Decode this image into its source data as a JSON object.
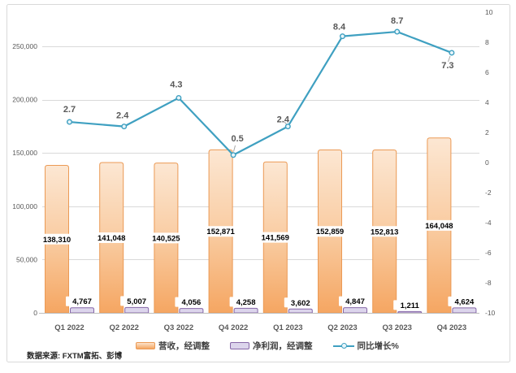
{
  "source": "数据来源: FXTM富拓、彭博",
  "chart_data": {
    "type": "combo",
    "categories": [
      "Q1 2022",
      "Q2 2022",
      "Q3 2022",
      "Q4 2022",
      "Q1 2023",
      "Q2 2023",
      "Q3 2023",
      "Q4 2023"
    ],
    "series": [
      {
        "name": "营收，经调整",
        "type": "bar",
        "axis": "left",
        "values": [
          138310,
          141048,
          140525,
          152871,
          141569,
          152859,
          152813,
          164048
        ],
        "labels": [
          "138,310",
          "141,048",
          "140,525",
          "152,871",
          "141,569",
          "152,859",
          "152,813",
          "164,048"
        ],
        "fill_top": "#FCE7D3",
        "fill_mid": "#F9CBA0",
        "fill_bottom": "#F5A662",
        "border": "#EB9A55"
      },
      {
        "name": "净利润，经调整",
        "type": "bar",
        "axis": "left",
        "values": [
          4767,
          5007,
          4056,
          4258,
          3602,
          4847,
          1211,
          4624
        ],
        "labels": [
          "4,767",
          "5,007",
          "4,056",
          "4,258",
          "3,602",
          "4,847",
          "1,211",
          "4,624"
        ],
        "fill": "#DCD5EC",
        "border": "#8667A8"
      },
      {
        "name": "同比增长%",
        "type": "line",
        "axis": "right",
        "values": [
          2.7,
          2.4,
          4.3,
          0.5,
          2.4,
          8.4,
          8.7,
          7.3
        ],
        "labels": [
          "2.7",
          "2.4",
          "4.3",
          "0.5",
          "2.4",
          "8.4",
          "8.7",
          "7.3"
        ],
        "color": "#3FA0C1",
        "marker_fill": "#E9F5FA"
      }
    ],
    "left_axis": {
      "min": 0,
      "max": 250000,
      "step": 50000,
      "tick_labels": [
        "0",
        "50,000",
        "100,000",
        "150,000",
        "200,000",
        "250,000"
      ]
    },
    "right_axis": {
      "min": -10,
      "max": 10,
      "step": 2,
      "tick_labels": [
        "-10",
        "-8",
        "-6",
        "-4",
        "-2",
        "0",
        "2",
        "4",
        "6",
        "8",
        "10"
      ]
    },
    "grid": true,
    "legend_position": "bottom",
    "colors": {
      "grid": "#D9D9D9",
      "axis_line": "#BFBFBF",
      "frame": "#D9D9D9",
      "tick_text": "#595959",
      "category_text": "#595959",
      "bar_label_text": "#000000",
      "bar_label_bg": "#FFFFFF",
      "line_label_text": "#595959",
      "leader": "#A6A6A6"
    }
  }
}
